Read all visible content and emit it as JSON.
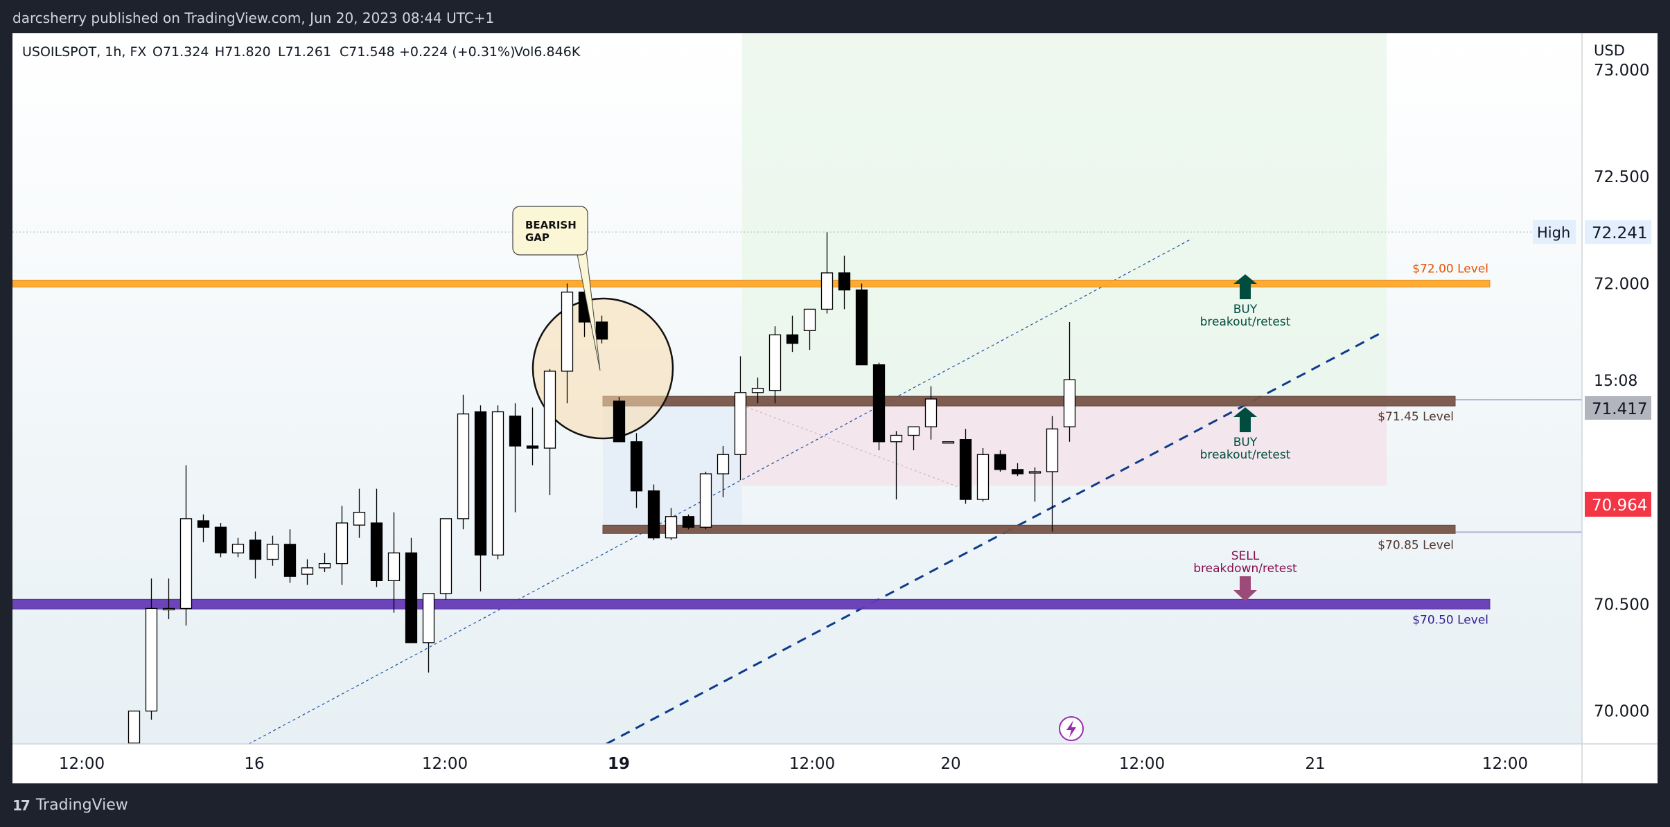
{
  "header": {
    "text": "darcsherry published on TradingView.com, Jun 20, 2023 08:44 UTC+1"
  },
  "footer": {
    "brand": "TradingView",
    "logo_glyph": "17"
  },
  "legend": {
    "symbol": "USOILSPOT, 1h, FX",
    "open": "O71.324",
    "high": "H71.820",
    "low": "L71.261",
    "close": "C71.548",
    "change": "+0.224 (+0.31%)",
    "volume": "Vol6.846K"
  },
  "currency": "USD",
  "colors": {
    "up_candle": "#ffffff",
    "down_candle": "#000000",
    "level_72": "#ffa726",
    "level_7145": "#795548",
    "level_7085": "#795548",
    "level_7050": "#673ab7",
    "trend_dashed": "#0d3b8c",
    "buy_arrow": "#004d40",
    "sell_arrow": "#9c4a78",
    "price_label_red": "#f23645",
    "price_label_grey": "#787b86"
  },
  "chart_data": {
    "type": "candlestick",
    "symbol": "USOILSPOT",
    "timeframe": "1h",
    "ylim": [
      69.85,
      73.15
    ],
    "y_ticks": [
      "70.000",
      "70.500",
      "72.000",
      "72.500",
      "73.000"
    ],
    "x_ticks": [
      "12:00",
      "16",
      "12:00",
      "19",
      "12:00",
      "20",
      "12:00",
      "21",
      "12:00"
    ],
    "x_tick_bold": [
      false,
      false,
      false,
      true,
      false,
      false,
      false,
      false,
      false
    ],
    "candles": [
      {
        "o": 69.85,
        "h": 70.0,
        "l": 69.75,
        "c": 70.0
      },
      {
        "o": 70.0,
        "h": 70.62,
        "l": 69.96,
        "c": 70.48
      },
      {
        "o": 70.48,
        "h": 70.62,
        "l": 70.43,
        "c": 70.48
      },
      {
        "o": 70.48,
        "h": 71.15,
        "l": 70.4,
        "c": 70.9
      },
      {
        "o": 70.89,
        "h": 70.92,
        "l": 70.79,
        "c": 70.86
      },
      {
        "o": 70.86,
        "h": 70.88,
        "l": 70.72,
        "c": 70.74
      },
      {
        "o": 70.74,
        "h": 70.81,
        "l": 70.72,
        "c": 70.78
      },
      {
        "o": 70.8,
        "h": 70.84,
        "l": 70.62,
        "c": 70.71
      },
      {
        "o": 70.71,
        "h": 70.82,
        "l": 70.68,
        "c": 70.78
      },
      {
        "o": 70.78,
        "h": 70.85,
        "l": 70.6,
        "c": 70.63
      },
      {
        "o": 70.64,
        "h": 70.71,
        "l": 70.59,
        "c": 70.67
      },
      {
        "o": 70.67,
        "h": 70.74,
        "l": 70.65,
        "c": 70.69
      },
      {
        "o": 70.69,
        "h": 70.96,
        "l": 70.59,
        "c": 70.88
      },
      {
        "o": 70.87,
        "h": 71.04,
        "l": 70.81,
        "c": 70.93
      },
      {
        "o": 70.88,
        "h": 71.04,
        "l": 70.58,
        "c": 70.61
      },
      {
        "o": 70.61,
        "h": 70.93,
        "l": 70.46,
        "c": 70.74
      },
      {
        "o": 70.74,
        "h": 70.81,
        "l": 70.32,
        "c": 70.32
      },
      {
        "o": 70.32,
        "h": 70.55,
        "l": 70.18,
        "c": 70.55
      },
      {
        "o": 70.55,
        "h": 70.9,
        "l": 70.52,
        "c": 70.9
      },
      {
        "o": 70.9,
        "h": 71.48,
        "l": 70.85,
        "c": 71.39
      },
      {
        "o": 71.4,
        "h": 71.43,
        "l": 70.56,
        "c": 70.73
      },
      {
        "o": 70.73,
        "h": 71.43,
        "l": 70.71,
        "c": 71.4
      },
      {
        "o": 71.38,
        "h": 71.44,
        "l": 70.93,
        "c": 71.24
      },
      {
        "o": 71.24,
        "h": 71.42,
        "l": 71.15,
        "c": 71.23
      },
      {
        "o": 71.23,
        "h": 71.6,
        "l": 71.01,
        "c": 71.59
      },
      {
        "o": 71.59,
        "h": 72.0,
        "l": 71.44,
        "c": 71.96
      },
      {
        "o": 71.96,
        "h": 71.96,
        "l": 71.75,
        "c": 71.82
      },
      {
        "o": 71.82,
        "h": 71.85,
        "l": 71.72,
        "c": 71.74
      },
      {
        "o": 71.45,
        "h": 71.47,
        "l": 71.26,
        "c": 71.26
      },
      {
        "o": 71.26,
        "h": 71.3,
        "l": 70.95,
        "c": 71.03
      },
      {
        "o": 71.03,
        "h": 71.06,
        "l": 70.8,
        "c": 70.81
      },
      {
        "o": 70.81,
        "h": 70.95,
        "l": 70.8,
        "c": 70.91
      },
      {
        "o": 70.91,
        "h": 70.92,
        "l": 70.85,
        "c": 70.86
      },
      {
        "o": 70.86,
        "h": 71.12,
        "l": 70.85,
        "c": 71.11
      },
      {
        "o": 71.11,
        "h": 71.24,
        "l": 71.0,
        "c": 71.2
      },
      {
        "o": 71.2,
        "h": 71.66,
        "l": 71.08,
        "c": 71.49
      },
      {
        "o": 71.49,
        "h": 71.56,
        "l": 71.44,
        "c": 71.51
      },
      {
        "o": 71.5,
        "h": 71.8,
        "l": 71.44,
        "c": 71.76
      },
      {
        "o": 71.76,
        "h": 71.85,
        "l": 71.68,
        "c": 71.72
      },
      {
        "o": 71.78,
        "h": 71.88,
        "l": 71.69,
        "c": 71.88
      },
      {
        "o": 71.88,
        "h": 72.24,
        "l": 71.86,
        "c": 72.05
      },
      {
        "o": 72.05,
        "h": 72.13,
        "l": 71.88,
        "c": 71.97
      },
      {
        "o": 71.97,
        "h": 72.0,
        "l": 71.62,
        "c": 71.62
      },
      {
        "o": 71.62,
        "h": 71.63,
        "l": 71.22,
        "c": 71.26
      },
      {
        "o": 71.26,
        "h": 71.31,
        "l": 70.99,
        "c": 71.29
      },
      {
        "o": 71.29,
        "h": 71.33,
        "l": 71.22,
        "c": 71.33
      },
      {
        "o": 71.33,
        "h": 71.52,
        "l": 71.27,
        "c": 71.46
      },
      {
        "o": 71.26,
        "h": 71.26,
        "l": 71.26,
        "c": 71.26
      },
      {
        "o": 71.27,
        "h": 71.32,
        "l": 70.97,
        "c": 70.99
      },
      {
        "o": 70.99,
        "h": 71.23,
        "l": 70.98,
        "c": 71.2
      },
      {
        "o": 71.2,
        "h": 71.22,
        "l": 71.12,
        "c": 71.13
      },
      {
        "o": 71.13,
        "h": 71.16,
        "l": 71.1,
        "c": 71.11
      },
      {
        "o": 71.12,
        "h": 71.14,
        "l": 70.98,
        "c": 71.12
      },
      {
        "o": 71.12,
        "h": 71.38,
        "l": 70.84,
        "c": 71.32
      },
      {
        "o": 71.33,
        "h": 71.82,
        "l": 71.26,
        "c": 71.55
      }
    ],
    "levels": [
      {
        "label": "$72.00 Level",
        "price": 72.0
      },
      {
        "label": "$71.45 Level",
        "price": 71.45
      },
      {
        "label": "$70.85 Level",
        "price": 70.85
      },
      {
        "label": "$70.50 Level",
        "price": 70.5
      }
    ],
    "price_labels": {
      "high_label": "High",
      "high": "72.241",
      "countdown": "15:08",
      "last": "71.417",
      "close": "70.964"
    },
    "annotations": {
      "bearish_gap": [
        "BEARISH",
        "GAP"
      ],
      "buy_top": [
        "BUY",
        "breakout/retest"
      ],
      "buy_mid": [
        "BUY",
        "breakout/retest"
      ],
      "sell": [
        "SELL",
        "breakdown/retest"
      ]
    }
  }
}
